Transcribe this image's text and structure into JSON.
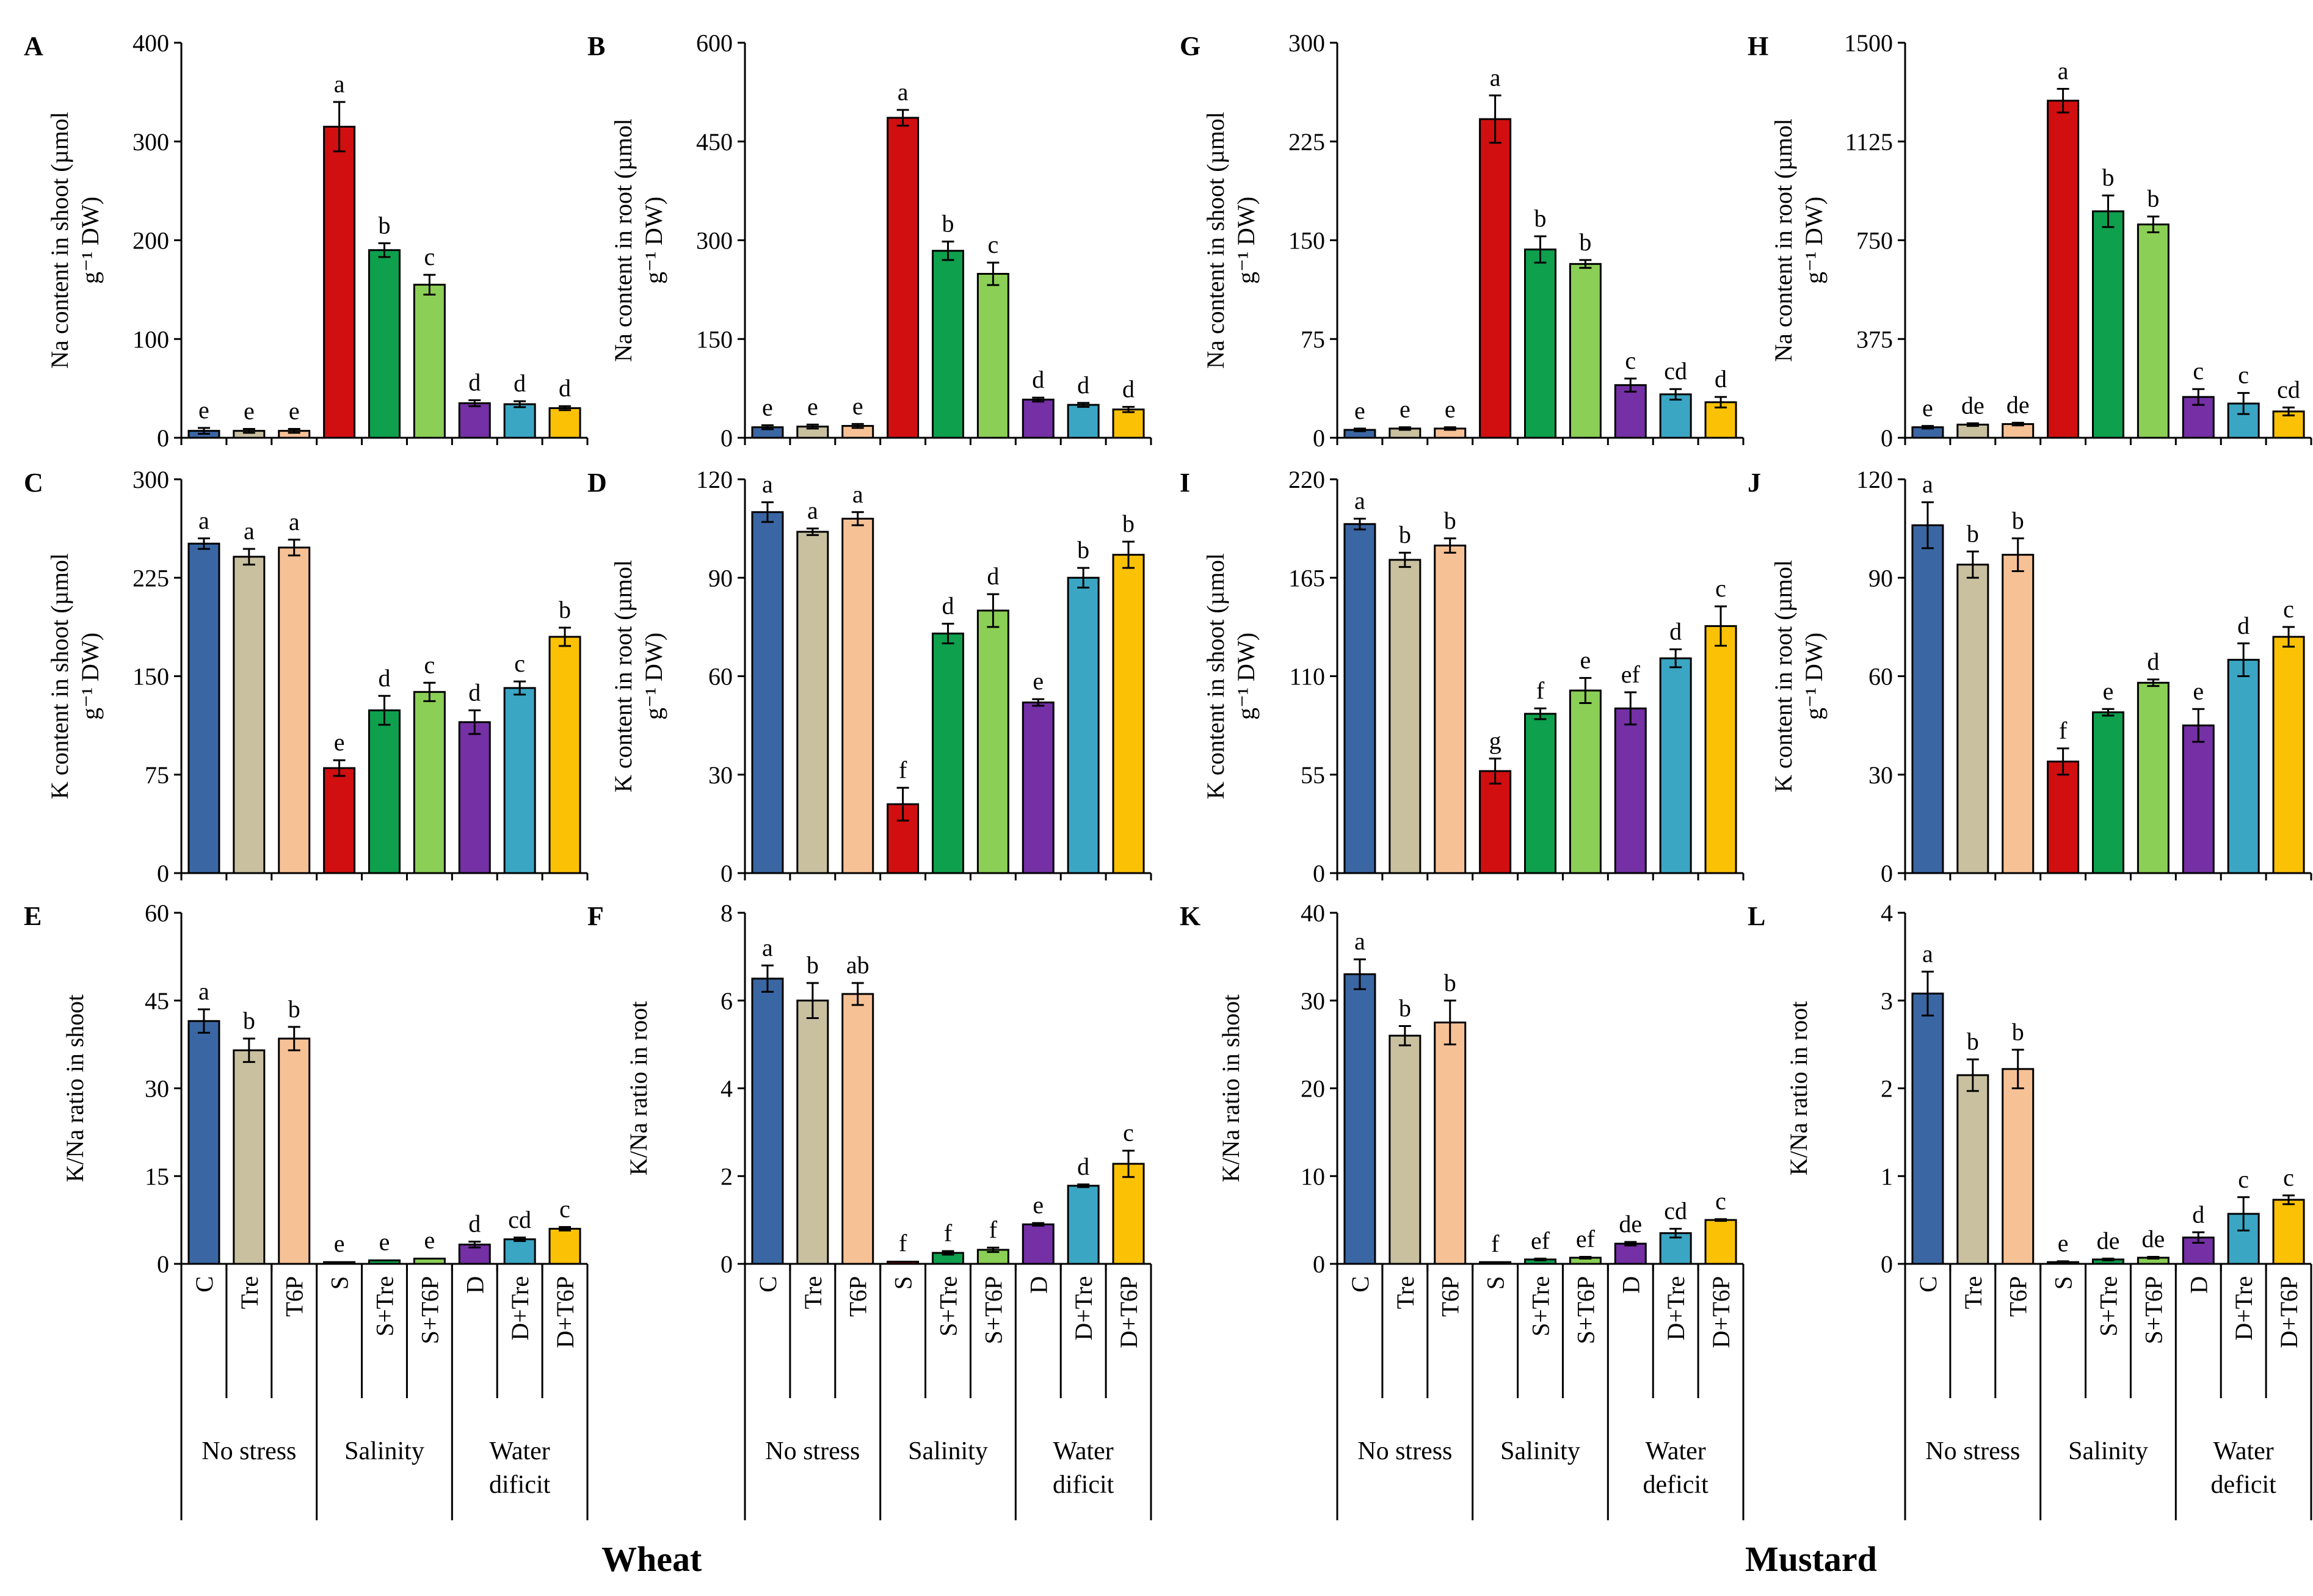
{
  "figure": {
    "categories": [
      "C",
      "Tre",
      "T6P",
      "S",
      "S+Tre",
      "S+T6P",
      "D",
      "D+Tre",
      "D+T6P"
    ],
    "bar_colors": [
      "#3a67a3",
      "#c9c0a0",
      "#f7c196",
      "#d10f10",
      "#0ea04d",
      "#8bcf56",
      "#7430a4",
      "#3aa6c4",
      "#fbc104"
    ],
    "groups_wheat": [
      {
        "lines": [
          "No stress"
        ]
      },
      {
        "lines": [
          "Salinity"
        ]
      },
      {
        "lines": [
          "Water",
          "dificit"
        ]
      }
    ],
    "groups_mustard": [
      {
        "lines": [
          "No stress"
        ]
      },
      {
        "lines": [
          "Salinity"
        ]
      },
      {
        "lines": [
          "Water",
          "deficit"
        ]
      }
    ],
    "title_wheat": "Wheat",
    "title_mustard": "Mustard"
  },
  "chart_data": [
    {
      "panel": "A",
      "type": "bar",
      "ylabel_lines": [
        "Na content in shoot (µmol",
        "g⁻¹ DW)"
      ],
      "ylim": [
        0,
        400
      ],
      "yticks": [
        0,
        100,
        200,
        300,
        400
      ],
      "values": [
        7,
        7,
        7,
        315,
        190,
        155,
        35,
        34,
        30
      ],
      "errors": [
        3,
        2,
        2,
        25,
        7,
        10,
        3,
        3,
        2
      ],
      "letters": [
        "e",
        "e",
        "e",
        "a",
        "b",
        "c",
        "d",
        "d",
        "d"
      ]
    },
    {
      "panel": "B",
      "type": "bar",
      "ylabel_lines": [
        "Na content in root (µmol",
        "g⁻¹ DW)"
      ],
      "ylim": [
        0,
        600
      ],
      "yticks": [
        0,
        150,
        300,
        450,
        600
      ],
      "values": [
        16,
        17,
        18,
        486,
        284,
        249,
        58,
        50,
        43
      ],
      "errors": [
        3,
        3,
        3,
        12,
        14,
        17,
        3,
        3,
        4
      ],
      "letters": [
        "e",
        "e",
        "e",
        "a",
        "b",
        "c",
        "d",
        "d",
        "d"
      ]
    },
    {
      "panel": "C",
      "type": "bar",
      "ylabel_lines": [
        "K content in shoot (µmol",
        "g⁻¹ DW)"
      ],
      "ylim": [
        0,
        300
      ],
      "yticks": [
        0,
        75,
        150,
        225,
        300
      ],
      "values": [
        251,
        241,
        248,
        80,
        124,
        138,
        115,
        141,
        180
      ],
      "errors": [
        4,
        6,
        6,
        6,
        11,
        7,
        9,
        5,
        7
      ],
      "letters": [
        "a",
        "a",
        "a",
        "e",
        "d",
        "c",
        "d",
        "c",
        "b"
      ]
    },
    {
      "panel": "D",
      "type": "bar",
      "ylabel_lines": [
        "K content in root (µmol",
        "g⁻¹ DW)"
      ],
      "ylim": [
        0,
        120
      ],
      "yticks": [
        0,
        30,
        60,
        90,
        120
      ],
      "values": [
        110,
        104,
        108,
        21,
        73,
        80,
        52,
        90,
        97
      ],
      "errors": [
        3,
        1,
        2,
        5,
        3,
        5,
        1,
        3,
        4
      ],
      "letters": [
        "a",
        "a",
        "a",
        "f",
        "d",
        "d",
        "e",
        "b",
        "b"
      ]
    },
    {
      "panel": "E",
      "type": "bar",
      "ylabel_lines": [
        "K/Na ratio in shoot"
      ],
      "ylim": [
        0,
        60
      ],
      "yticks": [
        0,
        15,
        30,
        45,
        60
      ],
      "values": [
        41.5,
        36.5,
        38.5,
        0.3,
        0.6,
        0.9,
        3.3,
        4.2,
        6.0
      ],
      "errors": [
        2,
        2,
        2,
        0.1,
        0.1,
        0.1,
        0.5,
        0.3,
        0.3
      ],
      "letters": [
        "a",
        "b",
        "b",
        "e",
        "e",
        "e",
        "d",
        "cd",
        "c"
      ]
    },
    {
      "panel": "F",
      "type": "bar",
      "ylabel_lines": [
        "K/Na ratio in root"
      ],
      "ylim": [
        0,
        8
      ],
      "yticks": [
        0,
        2,
        4,
        6,
        8
      ],
      "values": [
        6.5,
        6.0,
        6.15,
        0.05,
        0.25,
        0.32,
        0.9,
        1.78,
        2.28
      ],
      "errors": [
        0.3,
        0.4,
        0.25,
        0.01,
        0.04,
        0.05,
        0.03,
        0.03,
        0.3
      ],
      "letters": [
        "a",
        "b",
        "ab",
        "f",
        "f",
        "f",
        "e",
        "d",
        "c"
      ]
    },
    {
      "panel": "G",
      "type": "bar",
      "ylabel_lines": [
        "Na content in shoot (µmol",
        "g⁻¹ DW)"
      ],
      "ylim": [
        0,
        300
      ],
      "yticks": [
        0,
        75,
        150,
        225,
        300
      ],
      "values": [
        6,
        7,
        7,
        242,
        143,
        132,
        40,
        33,
        27
      ],
      "errors": [
        1,
        1,
        1,
        18,
        10,
        3,
        5,
        4,
        4
      ],
      "letters": [
        "e",
        "e",
        "e",
        "a",
        "b",
        "b",
        "c",
        "cd",
        "d"
      ]
    },
    {
      "panel": "H",
      "type": "bar",
      "ylabel_lines": [
        "Na content in root (µmol",
        "g⁻¹ DW)"
      ],
      "ylim": [
        0,
        1500
      ],
      "yticks": [
        0,
        375,
        750,
        1125,
        1500
      ],
      "values": [
        40,
        50,
        52,
        1280,
        860,
        810,
        155,
        130,
        100
      ],
      "errors": [
        5,
        5,
        5,
        45,
        60,
        30,
        30,
        40,
        15
      ],
      "letters": [
        "e",
        "de",
        "de",
        "a",
        "b",
        "b",
        "c",
        "c",
        "cd"
      ]
    },
    {
      "panel": "I",
      "type": "bar",
      "ylabel_lines": [
        "K content in shoot (µmol",
        "g⁻¹ DW)"
      ],
      "ylim": [
        0,
        220
      ],
      "yticks": [
        0,
        55,
        110,
        165,
        220
      ],
      "values": [
        195,
        175,
        183,
        57,
        89,
        102,
        92,
        120,
        138
      ],
      "errors": [
        3,
        4,
        4,
        7,
        3,
        7,
        9,
        5,
        11
      ],
      "letters": [
        "a",
        "b",
        "b",
        "g",
        "f",
        "e",
        "ef",
        "d",
        "c"
      ]
    },
    {
      "panel": "J",
      "type": "bar",
      "ylabel_lines": [
        "K content in root (µmol",
        "g⁻¹ DW)"
      ],
      "ylim": [
        0,
        120
      ],
      "yticks": [
        0,
        30,
        60,
        90,
        120
      ],
      "values": [
        106,
        94,
        97,
        34,
        49,
        58,
        45,
        65,
        72
      ],
      "errors": [
        7,
        4,
        5,
        4,
        1,
        1,
        5,
        5,
        3
      ],
      "letters": [
        "a",
        "b",
        "b",
        "f",
        "e",
        "d",
        "e",
        "d",
        "c"
      ]
    },
    {
      "panel": "K",
      "type": "bar",
      "ylabel_lines": [
        "K/Na ratio in shoot"
      ],
      "ylim": [
        0,
        40
      ],
      "yticks": [
        0,
        10,
        20,
        30,
        40
      ],
      "values": [
        33,
        26,
        27.5,
        0.2,
        0.5,
        0.7,
        2.3,
        3.5,
        5.0
      ],
      "errors": [
        1.7,
        1.1,
        2.5,
        0.05,
        0.1,
        0.1,
        0.2,
        0.5,
        0.1
      ],
      "letters": [
        "a",
        "b",
        "b",
        "f",
        "ef",
        "ef",
        "de",
        "cd",
        "c"
      ]
    },
    {
      "panel": "L",
      "type": "bar",
      "ylabel_lines": [
        "K/Na ratio in root"
      ],
      "ylim": [
        0,
        4
      ],
      "yticks": [
        0,
        1,
        2,
        3,
        4
      ],
      "values": [
        3.08,
        2.15,
        2.22,
        0.02,
        0.05,
        0.07,
        0.3,
        0.57,
        0.73
      ],
      "errors": [
        0.25,
        0.18,
        0.22,
        0.01,
        0.01,
        0.01,
        0.06,
        0.19,
        0.05
      ],
      "letters": [
        "a",
        "b",
        "b",
        "e",
        "de",
        "de",
        "d",
        "c",
        "c"
      ]
    }
  ]
}
